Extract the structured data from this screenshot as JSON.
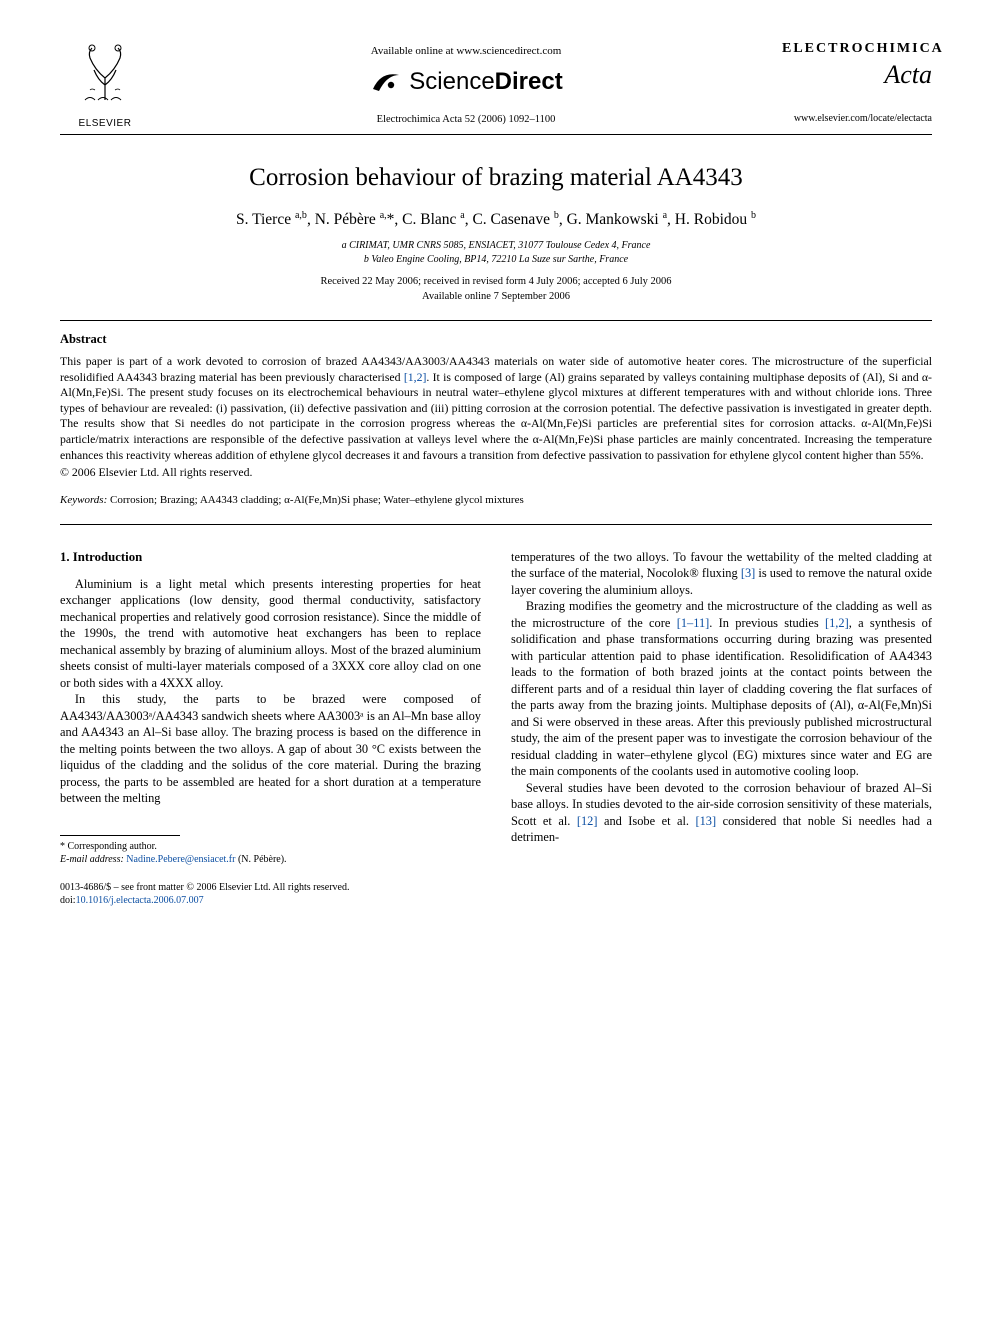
{
  "header": {
    "available_line": "Available online at www.sciencedirect.com",
    "sd_text_1": "Science",
    "sd_text_2": "Direct",
    "journal_ref": "Electrochimica Acta 52 (2006) 1092–1100",
    "elsevier_label": "ELSEVIER",
    "journal_logo_1": "ELECTROCHIMICA",
    "journal_logo_2": "Acta",
    "locate_url": "www.elsevier.com/locate/electacta"
  },
  "title": "Corrosion behaviour of brazing material AA4343",
  "authors_html": "S. Tierce <sup>a,b</sup>, N. Pébère <sup>a,</sup>*, C. Blanc <sup>a</sup>, C. Casenave <sup>b</sup>, G. Mankowski <sup>a</sup>, H. Robidou <sup>b</sup>",
  "affiliations": {
    "a": "a CIRIMAT, UMR CNRS 5085, ENSIACET, 31077 Toulouse Cedex 4, France",
    "b": "b Valeo Engine Cooling, BP14, 72210 La Suze sur Sarthe, France"
  },
  "dates": {
    "received": "Received 22 May 2006; received in revised form 4 July 2006; accepted 6 July 2006",
    "online": "Available online 7 September 2006"
  },
  "abstract": {
    "heading": "Abstract",
    "body": "This paper is part of a work devoted to corrosion of brazed AA4343/AA3003/AA4343 materials on water side of automotive heater cores. The microstructure of the superficial resolidified AA4343 brazing material has been previously characterised [1,2]. It is composed of large (Al) grains separated by valleys containing multiphase deposits of (Al), Si and α-Al(Mn,Fe)Si. The present study focuses on its electrochemical behaviours in neutral water–ethylene glycol mixtures at different temperatures with and without chloride ions. Three types of behaviour are revealed: (i) passivation, (ii) defective passivation and (iii) pitting corrosion at the corrosion potential. The defective passivation is investigated in greater depth. The results show that Si needles do not participate in the corrosion progress whereas the α-Al(Mn,Fe)Si particles are preferential sites for corrosion attacks. α-Al(Mn,Fe)Si particle/matrix interactions are responsible of the defective passivation at valleys level where the α-Al(Mn,Fe)Si phase particles are mainly concentrated. Increasing the temperature enhances this reactivity whereas addition of ethylene glycol decreases it and favours a transition from defective passivation to passivation for ethylene glycol content higher than 55%.",
    "copyright": "© 2006 Elsevier Ltd. All rights reserved."
  },
  "keywords": {
    "label": "Keywords:",
    "text": " Corrosion; Brazing; AA4343 cladding; α-Al(Fe,Mn)Si phase; Water–ethylene glycol mixtures"
  },
  "body": {
    "intro_heading": "1.  Introduction",
    "left_p1": "Aluminium is a light metal which presents interesting properties for heat exchanger applications (low density, good thermal conductivity, satisfactory mechanical properties and relatively good corrosion resistance). Since the middle of the 1990s, the trend with automotive heat exchangers has been to replace mechanical assembly by brazing of aluminium alloys. Most of the brazed aluminium sheets consist of multi-layer materials composed of a 3XXX core alloy clad on one or both sides with a 4XXX alloy.",
    "left_p2": "In this study, the parts to be brazed were composed of AA4343/AA3003ᵃ/AA4343 sandwich sheets where AA3003ᵃ is an Al–Mn base alloy and AA4343 an Al–Si base alloy. The brazing process is based on the difference in the melting points between the two alloys. A gap of about 30 °C exists between the liquidus of the cladding and the solidus of the core material. During the brazing process, the parts to be assembled are heated for a short duration at a temperature between the melting",
    "right_p1_a": "temperatures of the two alloys. To favour the wettability of the melted cladding at the surface of the material, Nocolok® fluxing ",
    "right_p1_link": "[3]",
    "right_p1_b": " is used to remove the natural oxide layer covering the aluminium alloys.",
    "right_p2_a": "Brazing modifies the geometry and the microstructure of the cladding as well as the microstructure of the core ",
    "right_p2_link1": "[1–11]",
    "right_p2_b": ". In previous studies ",
    "right_p2_link2": "[1,2]",
    "right_p2_c": ", a synthesis of solidification and phase transformations occurring during brazing was presented with particular attention paid to phase identification. Resolidification of AA4343 leads to the formation of both brazed joints at the contact points between the different parts and of a residual thin layer of cladding covering the flat surfaces of the parts away from the brazing joints. Multiphase deposits of (Al), α-Al(Fe,Mn)Si and Si were observed in these areas. After this previously published microstructural study, the aim of the present paper was to investigate the corrosion behaviour of the residual cladding in water–ethylene glycol (EG) mixtures since water and EG are the main components of the coolants used in automotive cooling loop.",
    "right_p3_a": "Several studies have been devoted to the corrosion behaviour of brazed Al–Si base alloys. In studies devoted to the air-side corrosion sensitivity of these materials, Scott et al. ",
    "right_p3_link1": "[12]",
    "right_p3_b": " and Isobe et al. ",
    "right_p3_link2": "[13]",
    "right_p3_c": " considered that noble Si needles had a detrimen-"
  },
  "footnote": {
    "star": "* Corresponding author.",
    "email_label": "E-mail address: ",
    "email": "Nadine.Pebere@ensiacet.fr",
    "email_tail": " (N. Pébère)."
  },
  "footer": {
    "line1": "0013-4686/$ – see front matter © 2006 Elsevier Ltd. All rights reserved.",
    "doi_label": "doi:",
    "doi": "10.1016/j.electacta.2006.07.007"
  },
  "refs_color": "#0b4ea2"
}
